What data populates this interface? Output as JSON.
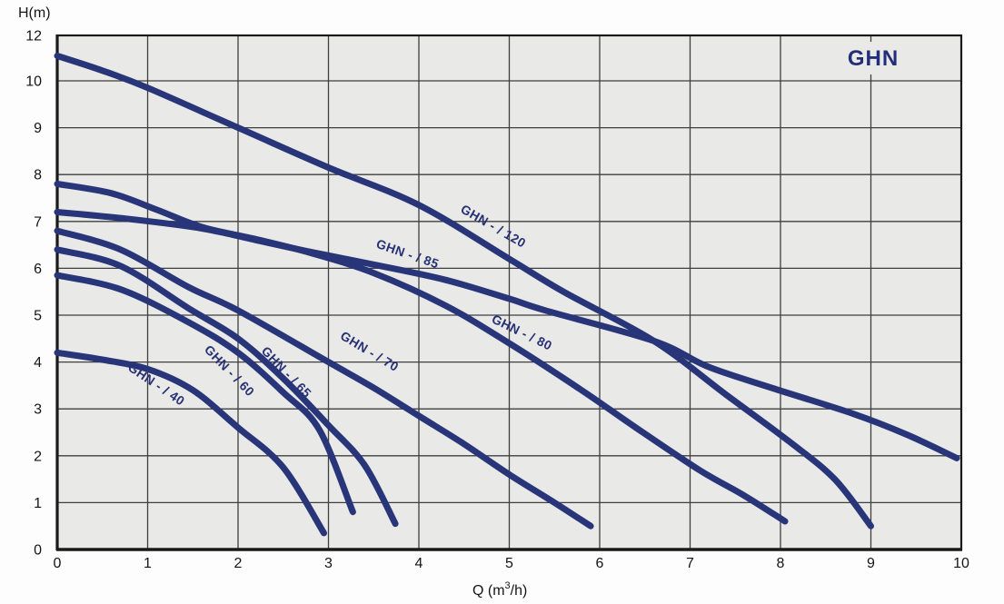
{
  "title_badge": "GHN",
  "axes": {
    "y_axis_label": "H(m)",
    "x_axis_label_prefix": "Q (m",
    "x_axis_label_sup": "3",
    "x_axis_label_suffix": "/h)",
    "y_ticks": [
      {
        "label": "12",
        "h": 12
      },
      {
        "label": "10",
        "h": 10
      },
      {
        "label": "9",
        "h": 9
      },
      {
        "label": "8",
        "h": 8
      },
      {
        "label": "7",
        "h": 7
      },
      {
        "label": "6",
        "h": 6
      },
      {
        "label": "5",
        "h": 5
      },
      {
        "label": "4",
        "h": 4
      },
      {
        "label": "3",
        "h": 3
      },
      {
        "label": "2",
        "h": 2
      },
      {
        "label": "1",
        "h": 1
      },
      {
        "label": "0",
        "h": 0
      }
    ],
    "x_ticks": [
      {
        "label": "0",
        "q": 0
      },
      {
        "label": "1",
        "q": 1
      },
      {
        "label": "2",
        "q": 2
      },
      {
        "label": "3",
        "q": 3
      },
      {
        "label": "4",
        "q": 4
      },
      {
        "label": "5",
        "q": 5
      },
      {
        "label": "6",
        "q": 6
      },
      {
        "label": "7",
        "q": 7
      },
      {
        "label": "8",
        "q": 8
      },
      {
        "label": "9",
        "q": 9
      },
      {
        "label": "10",
        "q": 10
      }
    ]
  },
  "colors": {
    "curve": "#283579",
    "curve_label": "#283174",
    "title": "#232e7a",
    "plot_bg": "#e9e9e8",
    "grid": "#3f3f3f",
    "axis_frame": "#1a1a1a",
    "tick_text": "#151515"
  },
  "chart_data": {
    "type": "line",
    "title": "GHN",
    "xlabel": "Q (m³/h)",
    "ylabel": "H(m)",
    "xlim": [
      0,
      10
    ],
    "ylim": [
      0,
      12
    ],
    "grid": true,
    "y_scale_note": "y axis labeled 0..10 then 12; the 10-12 band is drawn compressed (no 11 gridline)",
    "legend_position": "labels rotated along curves",
    "series": [
      {
        "name": "GHN - / 120",
        "label_at": [
          4.8,
          6.82
        ],
        "label_angle": 30,
        "points": [
          [
            0,
            11.1
          ],
          [
            0.5,
            10.45
          ],
          [
            1,
            9.85
          ],
          [
            2,
            9.0
          ],
          [
            3,
            8.15
          ],
          [
            4,
            7.35
          ],
          [
            5,
            6.2
          ],
          [
            5.6,
            5.5
          ],
          [
            6.6,
            4.45
          ],
          [
            7.4,
            3.3
          ],
          [
            8.1,
            2.3
          ],
          [
            8.6,
            1.5
          ],
          [
            9.0,
            0.5
          ]
        ]
      },
      {
        "name": "GHN - / 85",
        "label_at": [
          3.86,
          6.22
        ],
        "label_angle": 19,
        "points": [
          [
            0,
            7.2
          ],
          [
            0.8,
            7.05
          ],
          [
            1.6,
            6.85
          ],
          [
            2.2,
            6.6
          ],
          [
            2.8,
            6.35
          ],
          [
            3.5,
            6.08
          ],
          [
            4.3,
            5.75
          ],
          [
            5,
            5.35
          ],
          [
            5.4,
            5.1
          ],
          [
            6.6,
            4.45
          ],
          [
            7.2,
            3.9
          ],
          [
            7.9,
            3.45
          ],
          [
            8.8,
            2.9
          ],
          [
            9.4,
            2.45
          ],
          [
            9.95,
            1.95
          ]
        ]
      },
      {
        "name": "GHN - / 80",
        "label_at": [
          5.12,
          4.55
        ],
        "label_angle": 26,
        "points": [
          [
            0,
            7.8
          ],
          [
            0.6,
            7.6
          ],
          [
            1.1,
            7.25
          ],
          [
            1.6,
            6.88
          ],
          [
            2.2,
            6.62
          ],
          [
            2.8,
            6.33
          ],
          [
            3.5,
            5.9
          ],
          [
            4.3,
            5.2
          ],
          [
            5,
            4.4
          ],
          [
            5.8,
            3.4
          ],
          [
            6.4,
            2.6
          ],
          [
            7.1,
            1.7
          ],
          [
            7.6,
            1.15
          ],
          [
            8.05,
            0.6
          ]
        ]
      },
      {
        "name": "GHN - / 70",
        "label_at": [
          3.43,
          4.15
        ],
        "label_angle": 31,
        "points": [
          [
            0,
            6.8
          ],
          [
            0.7,
            6.4
          ],
          [
            1.45,
            5.6
          ],
          [
            2,
            5.1
          ],
          [
            3,
            4.0
          ],
          [
            3.5,
            3.45
          ],
          [
            4,
            2.85
          ],
          [
            4.5,
            2.25
          ],
          [
            5,
            1.6
          ],
          [
            5.5,
            1.0
          ],
          [
            5.9,
            0.5
          ]
        ]
      },
      {
        "name": "GHN - / 65",
        "label_at": [
          2.5,
          3.72
        ],
        "label_angle": 46,
        "points": [
          [
            0,
            6.4
          ],
          [
            0.7,
            6.05
          ],
          [
            1.45,
            5.15
          ],
          [
            2,
            4.5
          ],
          [
            2.5,
            3.65
          ],
          [
            3,
            2.65
          ],
          [
            3.4,
            1.8
          ],
          [
            3.74,
            0.55
          ]
        ]
      },
      {
        "name": "GHN - / 60",
        "label_at": [
          1.87,
          3.75
        ],
        "label_angle": 46,
        "points": [
          [
            0,
            5.85
          ],
          [
            0.7,
            5.55
          ],
          [
            1.45,
            4.85
          ],
          [
            2,
            4.2
          ],
          [
            2.5,
            3.35
          ],
          [
            2.9,
            2.55
          ],
          [
            3.27,
            0.8
          ]
        ]
      },
      {
        "name": "GHN - / 40",
        "label_at": [
          1.07,
          3.45
        ],
        "label_angle": 34,
        "points": [
          [
            0,
            4.2
          ],
          [
            0.5,
            4.05
          ],
          [
            1,
            3.85
          ],
          [
            1.5,
            3.4
          ],
          [
            2,
            2.6
          ],
          [
            2.5,
            1.75
          ],
          [
            2.95,
            0.35
          ]
        ]
      }
    ]
  }
}
